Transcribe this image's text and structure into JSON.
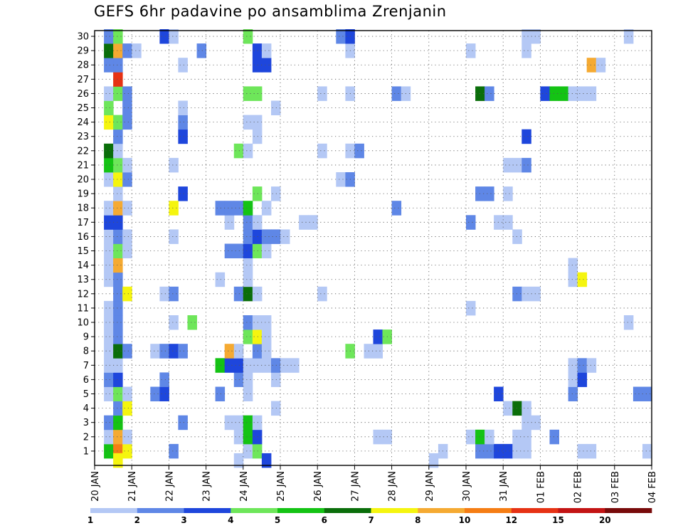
{
  "chart_data": {
    "type": "heatmap",
    "title": "GEFS 6hr padavine po ansamblima Zrenjanin",
    "y_categories": [
      "1",
      "2",
      "3",
      "4",
      "5",
      "6",
      "7",
      "8",
      "9",
      "10",
      "11",
      "12",
      "13",
      "14",
      "15",
      "16",
      "17",
      "18",
      "19",
      "20",
      "21",
      "22",
      "23",
      "24",
      "25",
      "26",
      "27",
      "28",
      "29",
      "30"
    ],
    "x_tick_labels": [
      "20 JAN",
      "21 JAN",
      "22 JAN",
      "23 JAN",
      "24 JAN",
      "25 JAN",
      "26 JAN",
      "27 JAN",
      "28 JAN",
      "29 JAN",
      "30 JAN",
      "31 JAN",
      "01 FEB",
      "02 FEB",
      "03 FEB",
      "04 FEB"
    ],
    "x_range_days": [
      0,
      15
    ],
    "colorbar": {
      "labels": [
        "1",
        "2",
        "3",
        "4",
        "5",
        "6",
        "7",
        "8",
        "10",
        "12",
        "15",
        "20"
      ],
      "colors": [
        "#b4c8f5",
        "#5f87e6",
        "#1e46dc",
        "#6ee65a",
        "#14c314",
        "#0a6e0a",
        "#f5f50f",
        "#f5aa32",
        "#f57d14",
        "#e63214",
        "#c31414",
        "#780a0a"
      ]
    },
    "grid": true,
    "cells": [
      [
        0.25,
        1,
        5
      ],
      [
        0.5,
        1,
        9
      ],
      [
        0.75,
        1,
        7
      ],
      [
        2.0,
        1,
        2
      ],
      [
        4.0,
        1,
        1
      ],
      [
        4.25,
        1,
        4
      ],
      [
        9.25,
        1,
        1
      ],
      [
        10.25,
        1,
        2
      ],
      [
        10.5,
        1,
        2
      ],
      [
        10.75,
        1,
        3
      ],
      [
        11.0,
        1,
        3
      ],
      [
        11.25,
        1,
        1
      ],
      [
        11.5,
        1,
        1
      ],
      [
        13.0,
        1,
        1
      ],
      [
        13.25,
        1,
        1
      ],
      [
        14.75,
        1,
        1
      ],
      [
        0.25,
        2,
        1
      ],
      [
        0.5,
        2,
        8
      ],
      [
        0.75,
        2,
        1
      ],
      [
        3.75,
        2,
        1
      ],
      [
        4.0,
        2,
        5
      ],
      [
        4.25,
        2,
        3
      ],
      [
        7.5,
        2,
        1
      ],
      [
        7.75,
        2,
        1
      ],
      [
        10.0,
        2,
        1
      ],
      [
        10.25,
        2,
        5
      ],
      [
        10.5,
        2,
        1
      ],
      [
        11.25,
        2,
        1
      ],
      [
        11.5,
        2,
        1
      ],
      [
        12.25,
        2,
        2
      ],
      [
        0.25,
        3,
        2
      ],
      [
        0.5,
        3,
        5
      ],
      [
        2.25,
        3,
        2
      ],
      [
        3.5,
        3,
        1
      ],
      [
        3.75,
        3,
        1
      ],
      [
        4.0,
        3,
        5
      ],
      [
        4.25,
        3,
        1
      ],
      [
        11.5,
        3,
        1
      ],
      [
        11.75,
        3,
        1
      ],
      [
        0.5,
        4,
        2
      ],
      [
        0.75,
        4,
        7
      ],
      [
        4.75,
        4,
        1
      ],
      [
        11.0,
        4,
        1
      ],
      [
        11.25,
        4,
        6
      ],
      [
        11.5,
        4,
        1
      ],
      [
        0.25,
        5,
        1
      ],
      [
        0.5,
        5,
        4
      ],
      [
        0.75,
        5,
        1
      ],
      [
        1.5,
        5,
        2
      ],
      [
        1.75,
        5,
        3
      ],
      [
        3.25,
        5,
        2
      ],
      [
        4.0,
        5,
        1
      ],
      [
        10.75,
        5,
        3
      ],
      [
        12.75,
        5,
        2
      ],
      [
        14.5,
        5,
        2
      ],
      [
        14.75,
        5,
        2
      ],
      [
        0.25,
        6,
        2
      ],
      [
        0.5,
        6,
        3
      ],
      [
        1.75,
        6,
        2
      ],
      [
        3.75,
        6,
        2
      ],
      [
        4.0,
        6,
        1
      ],
      [
        4.75,
        6,
        1
      ],
      [
        12.75,
        6,
        1
      ],
      [
        13.0,
        6,
        3
      ],
      [
        0.25,
        7,
        1
      ],
      [
        0.5,
        7,
        1
      ],
      [
        3.25,
        7,
        5
      ],
      [
        3.5,
        7,
        3
      ],
      [
        3.75,
        7,
        3
      ],
      [
        4.0,
        7,
        1
      ],
      [
        4.25,
        7,
        1
      ],
      [
        4.5,
        7,
        1
      ],
      [
        4.75,
        7,
        2
      ],
      [
        5.0,
        7,
        1
      ],
      [
        5.25,
        7,
        1
      ],
      [
        12.75,
        7,
        1
      ],
      [
        13.0,
        7,
        2
      ],
      [
        13.25,
        7,
        1
      ],
      [
        0.25,
        8,
        1
      ],
      [
        0.5,
        8,
        6
      ],
      [
        0.75,
        8,
        2
      ],
      [
        1.5,
        8,
        1
      ],
      [
        1.75,
        8,
        2
      ],
      [
        2.0,
        8,
        3
      ],
      [
        2.25,
        8,
        2
      ],
      [
        3.5,
        8,
        8
      ],
      [
        3.75,
        8,
        1
      ],
      [
        4.25,
        8,
        2
      ],
      [
        4.5,
        8,
        1
      ],
      [
        6.75,
        8,
        4
      ],
      [
        7.25,
        8,
        1
      ],
      [
        7.5,
        8,
        1
      ],
      [
        0.25,
        9,
        1
      ],
      [
        0.5,
        9,
        2
      ],
      [
        4.0,
        9,
        4
      ],
      [
        4.25,
        9,
        7
      ],
      [
        4.5,
        9,
        1
      ],
      [
        7.5,
        9,
        3
      ],
      [
        7.75,
        9,
        4
      ],
      [
        0.25,
        10,
        1
      ],
      [
        0.5,
        10,
        2
      ],
      [
        2.0,
        10,
        1
      ],
      [
        2.5,
        10,
        4
      ],
      [
        4.0,
        10,
        2
      ],
      [
        4.25,
        10,
        1
      ],
      [
        4.5,
        10,
        1
      ],
      [
        14.25,
        10,
        1
      ],
      [
        0.25,
        11,
        1
      ],
      [
        0.5,
        11,
        2
      ],
      [
        10.0,
        11,
        1
      ],
      [
        0.5,
        12,
        2
      ],
      [
        0.75,
        12,
        7
      ],
      [
        1.75,
        12,
        1
      ],
      [
        2.0,
        12,
        2
      ],
      [
        3.75,
        12,
        2
      ],
      [
        4.0,
        12,
        6
      ],
      [
        4.25,
        12,
        1
      ],
      [
        6.0,
        12,
        1
      ],
      [
        11.25,
        12,
        2
      ],
      [
        11.5,
        12,
        1
      ],
      [
        11.75,
        12,
        1
      ],
      [
        0.25,
        13,
        1
      ],
      [
        0.5,
        13,
        2
      ],
      [
        3.25,
        13,
        1
      ],
      [
        4.0,
        13,
        1
      ],
      [
        12.75,
        13,
        1
      ],
      [
        13.0,
        13,
        7
      ],
      [
        0.25,
        14,
        1
      ],
      [
        0.5,
        14,
        8
      ],
      [
        4.0,
        14,
        1
      ],
      [
        12.75,
        14,
        1
      ],
      [
        0.25,
        15,
        1
      ],
      [
        0.5,
        15,
        4
      ],
      [
        0.75,
        15,
        1
      ],
      [
        3.5,
        15,
        2
      ],
      [
        3.75,
        15,
        2
      ],
      [
        4.0,
        15,
        3
      ],
      [
        4.25,
        15,
        4
      ],
      [
        4.5,
        15,
        1
      ],
      [
        0.25,
        16,
        1
      ],
      [
        0.5,
        16,
        2
      ],
      [
        0.75,
        16,
        1
      ],
      [
        2.0,
        16,
        1
      ],
      [
        4.0,
        16,
        2
      ],
      [
        4.25,
        16,
        3
      ],
      [
        4.5,
        16,
        2
      ],
      [
        4.75,
        16,
        2
      ],
      [
        5.0,
        16,
        1
      ],
      [
        11.25,
        16,
        1
      ],
      [
        0.25,
        17,
        3
      ],
      [
        0.5,
        17,
        3
      ],
      [
        3.5,
        17,
        1
      ],
      [
        4.0,
        17,
        2
      ],
      [
        4.25,
        17,
        1
      ],
      [
        5.5,
        17,
        1
      ],
      [
        5.75,
        17,
        1
      ],
      [
        10.0,
        17,
        2
      ],
      [
        10.75,
        17,
        1
      ],
      [
        11.0,
        17,
        1
      ],
      [
        0.25,
        18,
        1
      ],
      [
        0.5,
        18,
        8
      ],
      [
        0.75,
        18,
        1
      ],
      [
        2.0,
        18,
        7
      ],
      [
        3.25,
        18,
        2
      ],
      [
        3.5,
        18,
        2
      ],
      [
        3.75,
        18,
        2
      ],
      [
        4.0,
        18,
        5
      ],
      [
        4.5,
        18,
        1
      ],
      [
        8.0,
        18,
        2
      ],
      [
        0.5,
        19,
        1
      ],
      [
        2.25,
        19,
        3
      ],
      [
        4.25,
        19,
        4
      ],
      [
        4.75,
        19,
        1
      ],
      [
        10.25,
        19,
        2
      ],
      [
        10.5,
        19,
        2
      ],
      [
        11.0,
        19,
        1
      ],
      [
        0.25,
        20,
        1
      ],
      [
        0.5,
        20,
        7
      ],
      [
        0.75,
        20,
        2
      ],
      [
        6.5,
        20,
        1
      ],
      [
        6.75,
        20,
        2
      ],
      [
        0.25,
        21,
        5
      ],
      [
        0.5,
        21,
        4
      ],
      [
        0.75,
        21,
        1
      ],
      [
        2.0,
        21,
        1
      ],
      [
        11.0,
        21,
        1
      ],
      [
        11.25,
        21,
        1
      ],
      [
        11.5,
        21,
        2
      ],
      [
        0.25,
        22,
        6
      ],
      [
        0.5,
        22,
        1
      ],
      [
        3.75,
        22,
        4
      ],
      [
        4.0,
        22,
        1
      ],
      [
        6.0,
        22,
        1
      ],
      [
        6.75,
        22,
        1
      ],
      [
        7.0,
        22,
        2
      ],
      [
        0.5,
        23,
        2
      ],
      [
        2.25,
        23,
        3
      ],
      [
        4.25,
        23,
        1
      ],
      [
        11.5,
        23,
        3
      ],
      [
        0.25,
        24,
        7
      ],
      [
        0.5,
        24,
        4
      ],
      [
        0.75,
        24,
        2
      ],
      [
        2.25,
        24,
        2
      ],
      [
        4.0,
        24,
        1
      ],
      [
        4.25,
        24,
        1
      ],
      [
        0.25,
        25,
        4
      ],
      [
        0.75,
        25,
        2
      ],
      [
        2.25,
        25,
        1
      ],
      [
        4.75,
        25,
        1
      ],
      [
        0.25,
        26,
        1
      ],
      [
        0.5,
        26,
        4
      ],
      [
        0.75,
        26,
        2
      ],
      [
        4.0,
        26,
        4
      ],
      [
        4.25,
        26,
        4
      ],
      [
        6.0,
        26,
        1
      ],
      [
        6.75,
        26,
        1
      ],
      [
        8.0,
        26,
        2
      ],
      [
        8.25,
        26,
        1
      ],
      [
        10.25,
        26,
        6
      ],
      [
        10.5,
        26,
        2
      ],
      [
        12.0,
        26,
        3
      ],
      [
        12.25,
        26,
        5
      ],
      [
        12.5,
        26,
        5
      ],
      [
        12.75,
        26,
        1
      ],
      [
        13.0,
        26,
        1
      ],
      [
        13.25,
        26,
        1
      ],
      [
        0.5,
        27,
        10
      ],
      [
        0.25,
        28,
        2
      ],
      [
        0.5,
        28,
        2
      ],
      [
        2.25,
        28,
        1
      ],
      [
        4.25,
        28,
        3
      ],
      [
        4.5,
        28,
        3
      ],
      [
        13.25,
        28,
        8
      ],
      [
        13.5,
        28,
        1
      ],
      [
        0.25,
        29,
        6
      ],
      [
        0.5,
        29,
        8
      ],
      [
        0.75,
        29,
        2
      ],
      [
        1.0,
        29,
        1
      ],
      [
        2.75,
        29,
        2
      ],
      [
        4.25,
        29,
        3
      ],
      [
        4.5,
        29,
        1
      ],
      [
        6.75,
        29,
        1
      ],
      [
        10.0,
        29,
        1
      ],
      [
        11.5,
        29,
        1
      ],
      [
        0.25,
        30,
        2
      ],
      [
        0.5,
        30,
        4
      ],
      [
        1.75,
        30,
        3
      ],
      [
        2.0,
        30,
        1
      ],
      [
        4.0,
        30,
        4
      ],
      [
        6.5,
        30,
        2
      ],
      [
        6.75,
        30,
        3
      ],
      [
        11.5,
        30,
        1
      ],
      [
        11.75,
        30,
        1
      ],
      [
        14.25,
        30,
        1
      ],
      [
        0.5,
        0.35,
        7
      ],
      [
        3.75,
        0.35,
        1
      ],
      [
        4.5,
        0.35,
        3
      ],
      [
        9.0,
        0.35,
        1
      ]
    ]
  }
}
